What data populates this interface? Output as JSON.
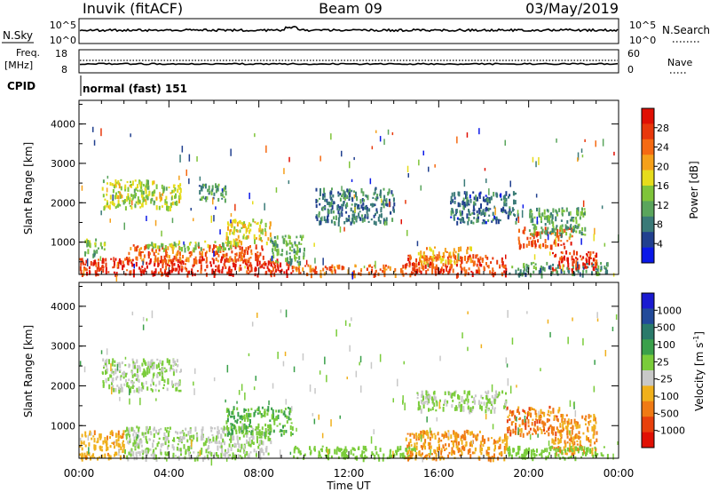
{
  "header": {
    "station": "Inuvik  (fitACF)",
    "beam": "Beam 09",
    "date": "03/May/2019"
  },
  "top_panel": {
    "left_label": "N.Sky",
    "right_label": "N.Search",
    "left_ticks": [
      "10^5",
      "10^0"
    ],
    "right_ticks": [
      "10^5",
      "10^0"
    ]
  },
  "freq_panel": {
    "left_label_1": "Freq.",
    "left_label_2": "[MHz]",
    "right_label": "Nave",
    "left_ticks": [
      "18",
      "8"
    ],
    "right_ticks": [
      "60",
      "0"
    ]
  },
  "cpid": {
    "label": "CPID",
    "value": "normal (fast) 151"
  },
  "power_colorbar": {
    "label": "Power [dB]",
    "ticks": [
      "4",
      "8",
      "12",
      "16",
      "20",
      "24",
      "28"
    ],
    "colors": [
      "#0a18e8",
      "#21408f",
      "#3a7a78",
      "#5aa55c",
      "#7fc43a",
      "#e6dc1c",
      "#f5a01a",
      "#f56a12",
      "#e8380c",
      "#e01004"
    ]
  },
  "velocity_colorbar": {
    "label": "Velocity [m s",
    "label_sup": "-1",
    "label_end": "]",
    "ticks": [
      "1000",
      "500",
      "100",
      "25",
      "-25",
      "-100",
      "-500",
      "-1000"
    ],
    "colors": [
      "#1a1ad0",
      "#224a9a",
      "#2a7a6a",
      "#3aa04a",
      "#7acc3a",
      "#c8c8c8",
      "#f0b01c",
      "#f07a14",
      "#e8400c",
      "#e01004"
    ]
  },
  "chart_data": [
    {
      "type": "heatmap",
      "name": "power",
      "ylabel": "Slant Range [km]",
      "xlabel": "",
      "ylim": [
        180,
        4600
      ],
      "yticks": [
        1000,
        2000,
        3000,
        4000
      ],
      "xticks": [
        "00:00",
        "04:00",
        "08:00",
        "12:00",
        "16:00",
        "20:00",
        "00:00"
      ],
      "xlim_hours": [
        0,
        24
      ],
      "colorbar_range": [
        0,
        32
      ],
      "regions": [
        {
          "t": [
            0.0,
            9.5
          ],
          "r": [
            200,
            600
          ],
          "v": 29
        },
        {
          "t": [
            2.0,
            8.2
          ],
          "r": [
            550,
            950
          ],
          "v": 25
        },
        {
          "t": [
            3.0,
            7.0
          ],
          "r": [
            850,
            1050
          ],
          "v": 14
        },
        {
          "t": [
            0.2,
            1.2
          ],
          "r": [
            700,
            1100
          ],
          "v": 13
        },
        {
          "t": [
            9.5,
            14.5
          ],
          "r": [
            200,
            450
          ],
          "v": 24
        },
        {
          "t": [
            14.5,
            19.0
          ],
          "r": [
            200,
            700
          ],
          "v": 27
        },
        {
          "t": [
            15.0,
            17.5
          ],
          "r": [
            500,
            900
          ],
          "v": 20
        },
        {
          "t": [
            19.0,
            23.5
          ],
          "r": [
            200,
            500
          ],
          "v": 10
        },
        {
          "t": [
            21.0,
            23.0
          ],
          "r": [
            300,
            800
          ],
          "v": 28
        },
        {
          "t": [
            19.5,
            22.0
          ],
          "r": [
            900,
            1400
          ],
          "v": 26
        },
        {
          "t": [
            20.0,
            22.5
          ],
          "r": [
            1200,
            1900
          ],
          "v": 12
        },
        {
          "t": [
            1.0,
            4.5
          ],
          "r": [
            1900,
            2600
          ],
          "v": 16
        },
        {
          "t": [
            5.3,
            6.5
          ],
          "r": [
            2100,
            2500
          ],
          "v": 10
        },
        {
          "t": [
            6.5,
            8.5
          ],
          "r": [
            1000,
            1600
          ],
          "v": 18
        },
        {
          "t": [
            8.5,
            10.0
          ],
          "r": [
            500,
            1200
          ],
          "v": 12
        },
        {
          "t": [
            10.5,
            14.0
          ],
          "r": [
            1500,
            2400
          ],
          "v": 8
        },
        {
          "t": [
            16.5,
            19.5
          ],
          "r": [
            1500,
            2300
          ],
          "v": 7
        }
      ]
    },
    {
      "type": "heatmap",
      "name": "velocity",
      "ylabel": "Slant Range [km]",
      "xlabel": "Time UT",
      "ylim": [
        180,
        4600
      ],
      "yticks": [
        1000,
        2000,
        3000,
        4000
      ],
      "xticks": [
        "00:00",
        "04:00",
        "08:00",
        "12:00",
        "16:00",
        "20:00",
        "00:00"
      ],
      "xlim_hours": [
        0,
        24
      ],
      "colorbar_range": [
        -1000,
        1000
      ],
      "regions": [
        {
          "t": [
            0.0,
            2.0
          ],
          "r": [
            200,
            900
          ],
          "v": -300
        },
        {
          "t": [
            2.0,
            8.5
          ],
          "r": [
            200,
            1000
          ],
          "v": 0
        },
        {
          "t": [
            1.0,
            4.5
          ],
          "r": [
            1900,
            2700
          ],
          "v": 0
        },
        {
          "t": [
            6.5,
            9.5
          ],
          "r": [
            800,
            1500
          ],
          "v": 200
        },
        {
          "t": [
            9.5,
            15.0
          ],
          "r": [
            200,
            500
          ],
          "v": 80
        },
        {
          "t": [
            14.5,
            19.0
          ],
          "r": [
            200,
            900
          ],
          "v": -400
        },
        {
          "t": [
            15.0,
            19.0
          ],
          "r": [
            1400,
            1900
          ],
          "v": 0
        },
        {
          "t": [
            19.0,
            21.5
          ],
          "r": [
            800,
            1500
          ],
          "v": -500
        },
        {
          "t": [
            21.0,
            23.0
          ],
          "r": [
            300,
            1300
          ],
          "v": -400
        },
        {
          "t": [
            19.0,
            23.5
          ],
          "r": [
            200,
            500
          ],
          "v": 50
        }
      ]
    }
  ]
}
